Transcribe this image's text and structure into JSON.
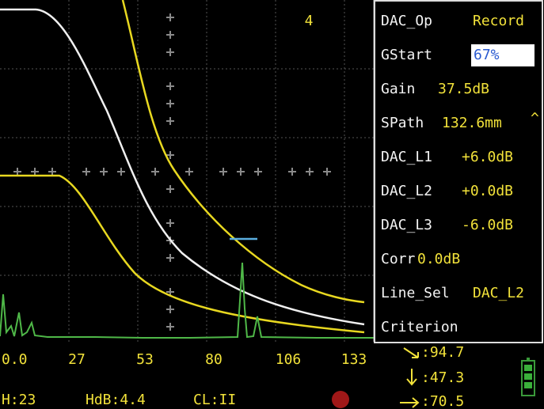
{
  "plot": {
    "gate_number": "4",
    "x_labels": [
      "0.0",
      "27",
      "53",
      "80",
      "106",
      "133"
    ]
  },
  "menu": [
    {
      "label": "DAC_Op",
      "value": "Record"
    },
    {
      "label": "GStart",
      "value": "67%"
    },
    {
      "label": "Gain",
      "value": "37.5dB"
    },
    {
      "label": "SPath",
      "value": "132.6mm"
    },
    {
      "label": "DAC_L1",
      "value": "+6.0dB"
    },
    {
      "label": "DAC_L2",
      "value": "+0.0dB"
    },
    {
      "label": "DAC_L3",
      "value": "-6.0dB"
    },
    {
      "label": "Corr",
      "value": "0.0dB"
    },
    {
      "label": "Line_Sel",
      "value": "DAC_L2"
    },
    {
      "label": "Criterion"
    }
  ],
  "readouts": [
    ":94.7",
    ":47.3",
    ":70.5"
  ],
  "status": [
    "H:23",
    "HdB:4.4",
    "CL:II"
  ]
}
